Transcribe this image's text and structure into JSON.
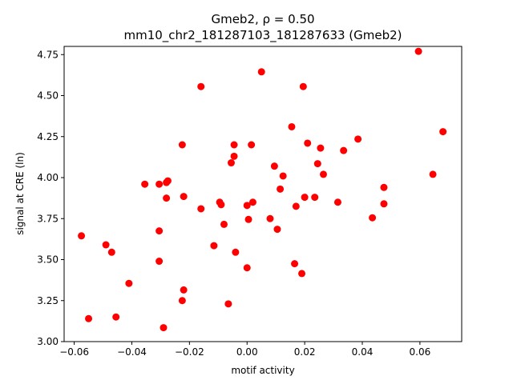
{
  "chart_data": {
    "type": "scatter",
    "title_line1": "Gmeb2, ρ = 0.50",
    "title_line2": "mm10_chr2_181287103_181287633 (Gmeb2)",
    "xlabel": "motif activity",
    "ylabel": "signal at CRE (ln)",
    "xlim": [
      -0.0635,
      0.0745
    ],
    "ylim": [
      3.0,
      4.8
    ],
    "xticks": [
      -0.06,
      -0.04,
      -0.02,
      0.0,
      0.02,
      0.04,
      0.06
    ],
    "xtick_labels": [
      "−0.06",
      "−0.04",
      "−0.02",
      "0.00",
      "0.02",
      "0.04",
      "0.06"
    ],
    "yticks": [
      3.0,
      3.25,
      3.5,
      3.75,
      4.0,
      4.25,
      4.5,
      4.75
    ],
    "ytick_labels": [
      "3.00",
      "3.25",
      "3.50",
      "3.75",
      "4.00",
      "4.25",
      "4.50",
      "4.75"
    ],
    "marker_color": "#ff0000",
    "grid": false,
    "points": [
      {
        "x": -0.0575,
        "y": 3.645
      },
      {
        "x": -0.055,
        "y": 3.14
      },
      {
        "x": -0.049,
        "y": 3.59
      },
      {
        "x": -0.047,
        "y": 3.545
      },
      {
        "x": -0.0455,
        "y": 3.15
      },
      {
        "x": -0.041,
        "y": 3.355
      },
      {
        "x": -0.0355,
        "y": 3.96
      },
      {
        "x": -0.0305,
        "y": 3.96
      },
      {
        "x": -0.0305,
        "y": 3.675
      },
      {
        "x": -0.0305,
        "y": 3.49
      },
      {
        "x": -0.029,
        "y": 3.085
      },
      {
        "x": -0.028,
        "y": 3.97
      },
      {
        "x": -0.0275,
        "y": 3.98
      },
      {
        "x": -0.028,
        "y": 3.875
      },
      {
        "x": -0.0225,
        "y": 4.2
      },
      {
        "x": -0.022,
        "y": 3.885
      },
      {
        "x": -0.022,
        "y": 3.315
      },
      {
        "x": -0.0225,
        "y": 3.25
      },
      {
        "x": -0.016,
        "y": 4.555
      },
      {
        "x": -0.016,
        "y": 3.81
      },
      {
        "x": -0.0115,
        "y": 3.585
      },
      {
        "x": -0.0095,
        "y": 3.85
      },
      {
        "x": -0.009,
        "y": 3.835
      },
      {
        "x": -0.008,
        "y": 3.715
      },
      {
        "x": -0.0065,
        "y": 3.23
      },
      {
        "x": -0.0055,
        "y": 4.09
      },
      {
        "x": -0.0045,
        "y": 4.2
      },
      {
        "x": -0.0045,
        "y": 4.13
      },
      {
        "x": -0.004,
        "y": 3.545
      },
      {
        "x": 0.005,
        "y": 4.645
      },
      {
        "x": 0.0,
        "y": 3.83
      },
      {
        "x": 0.0,
        "y": 3.45
      },
      {
        "x": 0.0005,
        "y": 3.745
      },
      {
        "x": 0.0015,
        "y": 4.2
      },
      {
        "x": 0.002,
        "y": 3.85
      },
      {
        "x": 0.008,
        "y": 3.75
      },
      {
        "x": 0.0095,
        "y": 4.07
      },
      {
        "x": 0.0105,
        "y": 3.685
      },
      {
        "x": 0.0115,
        "y": 3.93
      },
      {
        "x": 0.0125,
        "y": 4.01
      },
      {
        "x": 0.0155,
        "y": 4.31
      },
      {
        "x": 0.0165,
        "y": 3.475
      },
      {
        "x": 0.017,
        "y": 3.825
      },
      {
        "x": 0.0195,
        "y": 4.555
      },
      {
        "x": 0.019,
        "y": 3.415
      },
      {
        "x": 0.02,
        "y": 3.88
      },
      {
        "x": 0.021,
        "y": 4.21
      },
      {
        "x": 0.0235,
        "y": 3.88
      },
      {
        "x": 0.0245,
        "y": 4.085
      },
      {
        "x": 0.0255,
        "y": 4.18
      },
      {
        "x": 0.0265,
        "y": 4.02
      },
      {
        "x": 0.0315,
        "y": 3.85
      },
      {
        "x": 0.0335,
        "y": 4.165
      },
      {
        "x": 0.0385,
        "y": 4.235
      },
      {
        "x": 0.0435,
        "y": 3.755
      },
      {
        "x": 0.0475,
        "y": 3.94
      },
      {
        "x": 0.0475,
        "y": 3.84
      },
      {
        "x": 0.0595,
        "y": 4.77
      },
      {
        "x": 0.0645,
        "y": 4.02
      },
      {
        "x": 0.068,
        "y": 4.28
      }
    ]
  }
}
